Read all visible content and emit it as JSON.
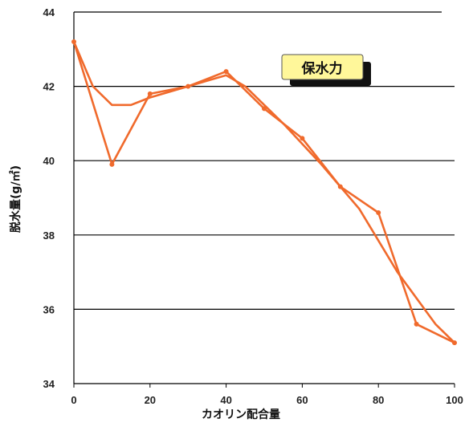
{
  "chart_data": {
    "type": "line",
    "xlabel": "カオリン配合量",
    "ylabel": "脱水量(g/㎡)",
    "xlim": [
      0,
      100
    ],
    "ylim": [
      34,
      44
    ],
    "x_ticks": [
      "0",
      "20",
      "40",
      "60",
      "80",
      "100"
    ],
    "y_ticks": [
      "34",
      "36",
      "38",
      "40",
      "42",
      "44"
    ],
    "grid": "horizontal",
    "annotation": "保水力",
    "series": [
      {
        "x": [
          0,
          10,
          20,
          30,
          40,
          50,
          60,
          70,
          80,
          90,
          100
        ],
        "values": [
          43.2,
          39.9,
          41.8,
          42.0,
          42.4,
          41.4,
          40.6,
          39.3,
          38.6,
          35.6,
          35.1
        ]
      },
      {
        "x": [
          0,
          5,
          10,
          15,
          20,
          30,
          40,
          45,
          55,
          65,
          75,
          85,
          95,
          100
        ],
        "values": [
          43.2,
          42.0,
          41.5,
          41.5,
          41.7,
          42.0,
          42.3,
          42.0,
          41.0,
          39.9,
          38.7,
          37.0,
          35.6,
          35.1
        ]
      }
    ],
    "colors": {
      "line": "#f06a2c",
      "grid": "#000000",
      "legend_fill": "#fff79a",
      "legend_shadow": "#111111"
    }
  }
}
